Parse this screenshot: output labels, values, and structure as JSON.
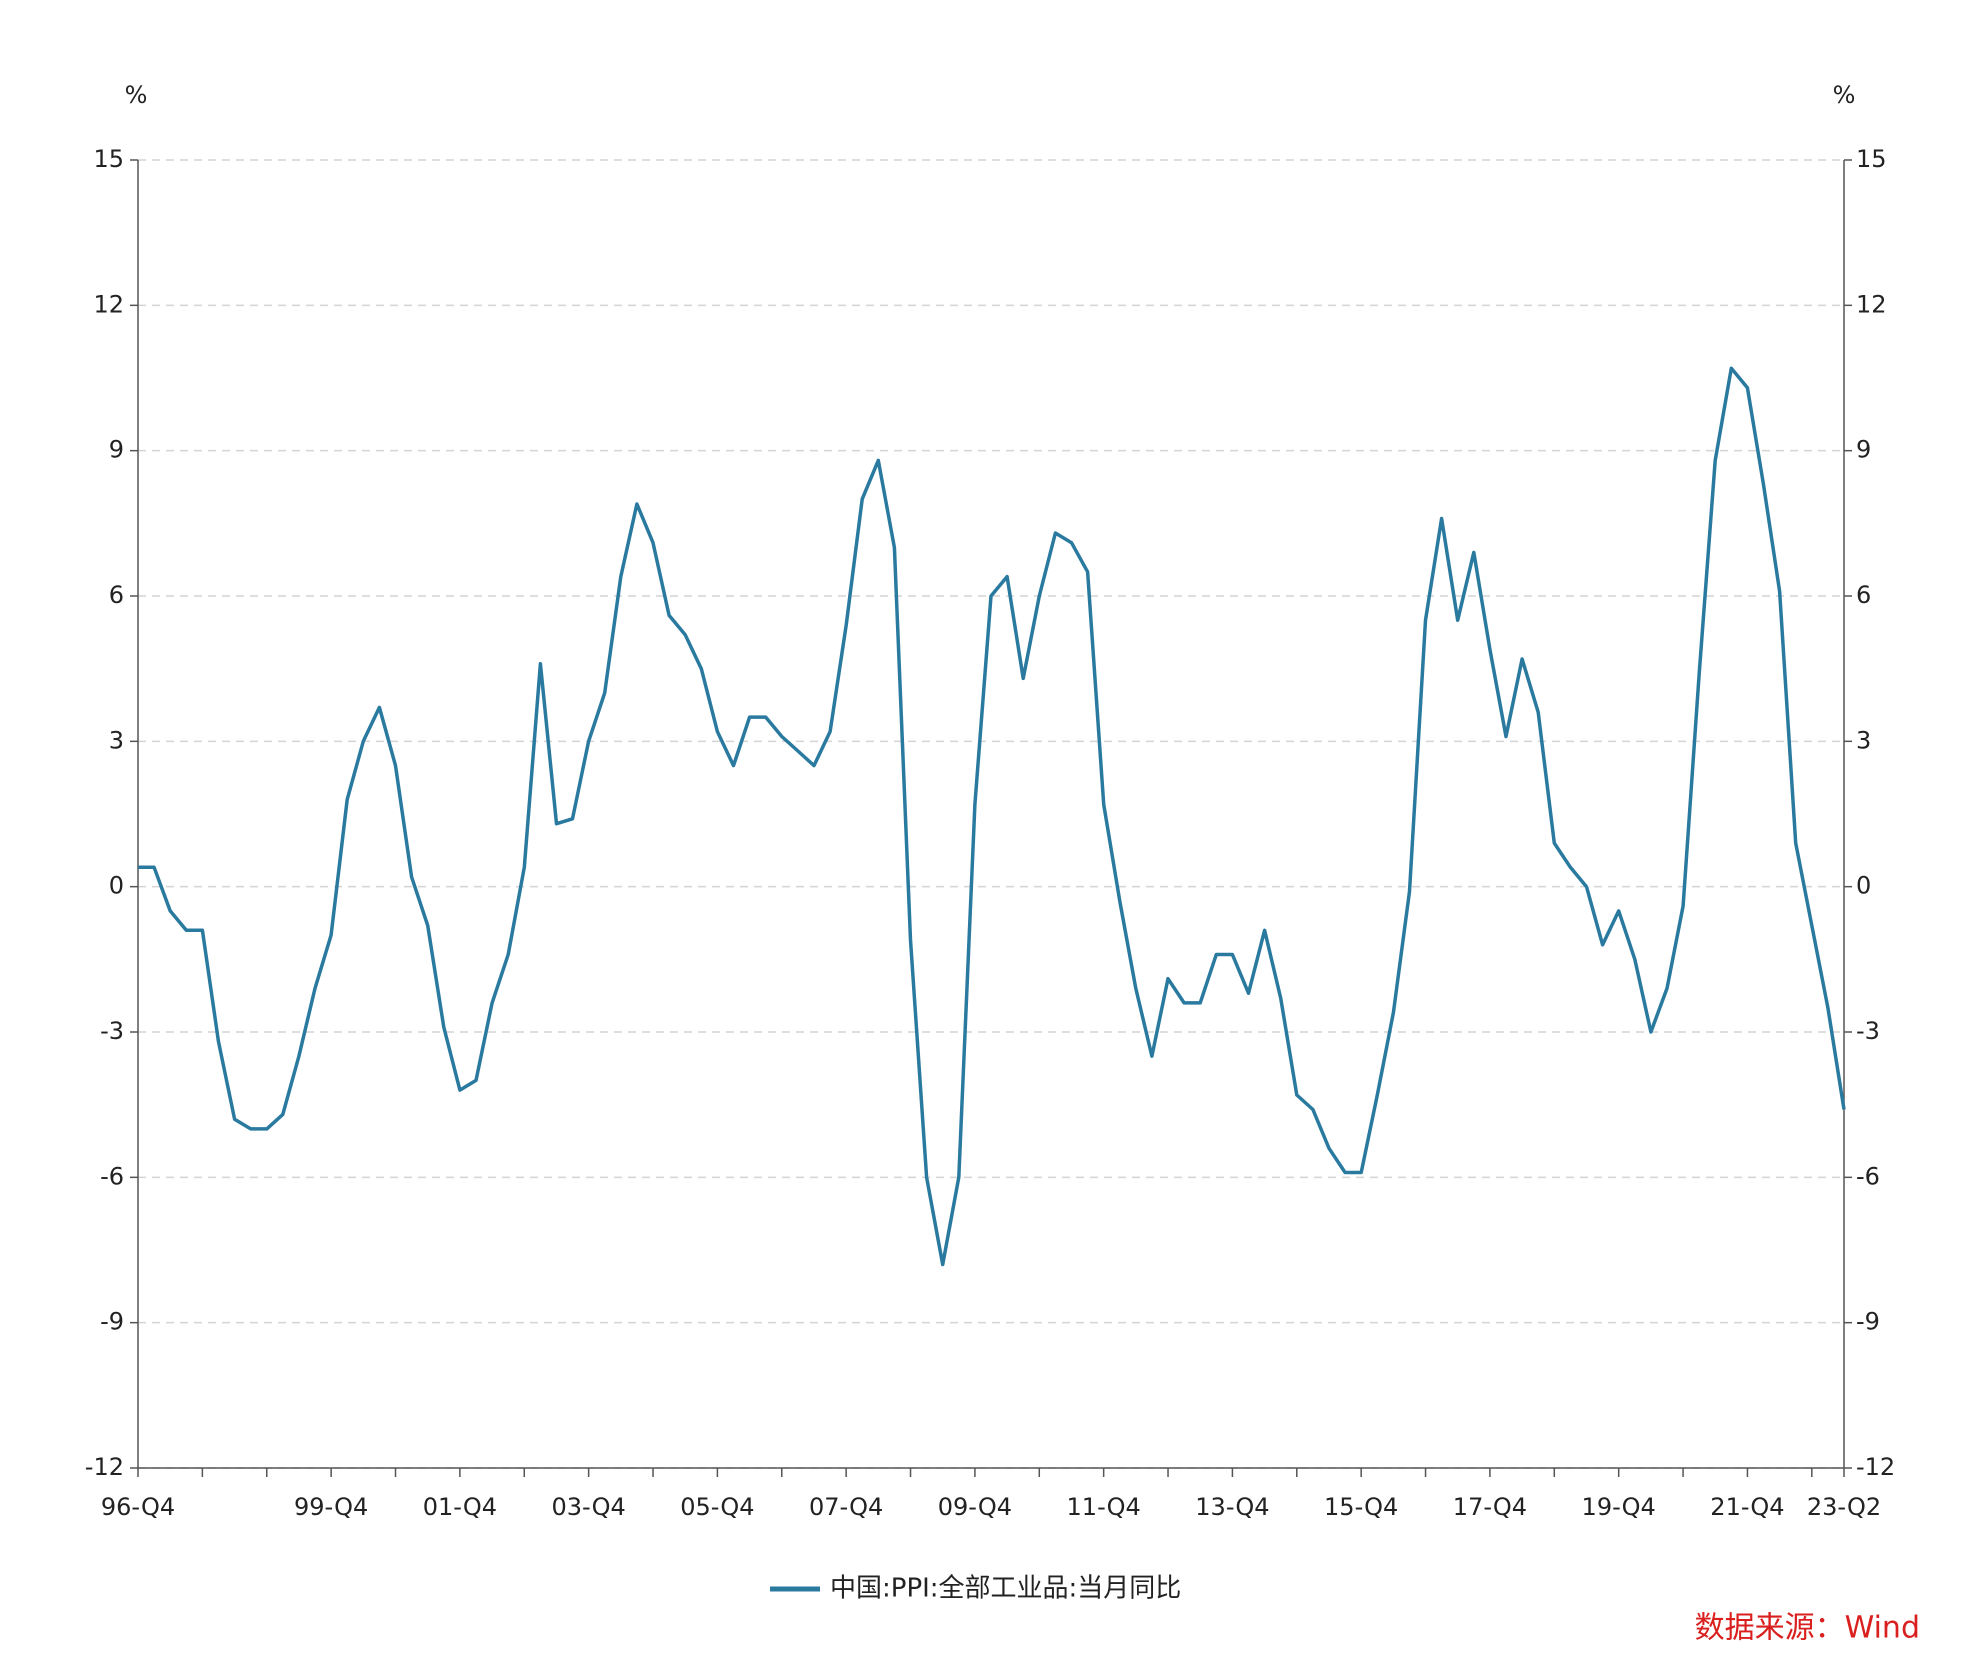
{
  "chart_data": {
    "type": "line",
    "y_unit": "%",
    "y2_unit": "%",
    "categories": [
      "96-Q4",
      null,
      null,
      null,
      null,
      null,
      null,
      null,
      null,
      null,
      null,
      null,
      "99-Q4",
      null,
      null,
      null,
      null,
      null,
      null,
      null,
      "01-Q4",
      null,
      null,
      null,
      null,
      null,
      null,
      null,
      "03-Q4",
      null,
      null,
      null,
      null,
      null,
      null,
      null,
      "05-Q4",
      null,
      null,
      null,
      null,
      null,
      null,
      null,
      "07-Q4",
      null,
      null,
      null,
      null,
      null,
      null,
      null,
      "09-Q4",
      null,
      null,
      null,
      null,
      null,
      null,
      null,
      "11-Q4",
      null,
      null,
      null,
      null,
      null,
      null,
      null,
      "13-Q4",
      null,
      null,
      null,
      null,
      null,
      null,
      null,
      "15-Q4",
      null,
      null,
      null,
      null,
      null,
      null,
      null,
      "17-Q4",
      null,
      null,
      null,
      null,
      null,
      null,
      null,
      "19-Q4",
      null,
      null,
      null,
      null,
      null,
      null,
      null,
      "21-Q4",
      null,
      null,
      null,
      null,
      null,
      "23-Q2"
    ],
    "series": [
      {
        "name": "中国:PPI:全部工业品:当月同比",
        "color": "#2a7aa0",
        "values": [
          0.4,
          0.4,
          -0.5,
          -0.9,
          -0.9,
          -3.2,
          -4.8,
          -5.0,
          -5.0,
          -4.7,
          -3.5,
          -2.1,
          -1.0,
          1.8,
          3.0,
          3.7,
          2.5,
          0.2,
          -0.8,
          -2.9,
          -4.2,
          -4.0,
          -2.4,
          -1.4,
          0.4,
          4.6,
          1.3,
          1.4,
          3.0,
          4.0,
          6.4,
          7.9,
          7.1,
          5.6,
          5.2,
          4.5,
          3.2,
          2.5,
          3.5,
          3.5,
          3.1,
          2.8,
          2.5,
          3.2,
          5.4,
          8.0,
          8.8,
          7.0,
          -1.1,
          -6.0,
          -7.8,
          -6.0,
          1.7,
          6.0,
          6.4,
          4.3,
          6.0,
          7.3,
          7.1,
          6.5,
          1.7,
          -0.3,
          -2.1,
          -3.5,
          -1.9,
          -2.4,
          -2.4,
          -1.4,
          -1.4,
          -2.2,
          -0.9,
          -2.3,
          -4.3,
          -4.6,
          -5.4,
          -5.9,
          -5.9,
          -4.3,
          -2.6,
          -0.1,
          5.5,
          7.6,
          5.5,
          6.9,
          4.9,
          3.1,
          4.7,
          3.6,
          0.9,
          0.4,
          0.0,
          -1.2,
          -0.5,
          -1.5,
          -3.0,
          -2.1,
          -0.4,
          4.4,
          8.8,
          10.7,
          10.3,
          8.3,
          6.1,
          0.9,
          -0.8,
          -2.5,
          -4.6
        ]
      }
    ],
    "ylim": [
      -12,
      15
    ],
    "yticks": [
      -12,
      -9,
      -6,
      -3,
      0,
      3,
      6,
      9,
      12,
      15
    ],
    "y2lim": [
      -12,
      15
    ],
    "y2ticks": [
      -12,
      -9,
      -6,
      -3,
      0,
      3,
      6,
      9,
      12,
      15
    ],
    "grid": true,
    "legend": "bottom",
    "source": "数据来源：Wind",
    "source_color": "#d9201f"
  }
}
